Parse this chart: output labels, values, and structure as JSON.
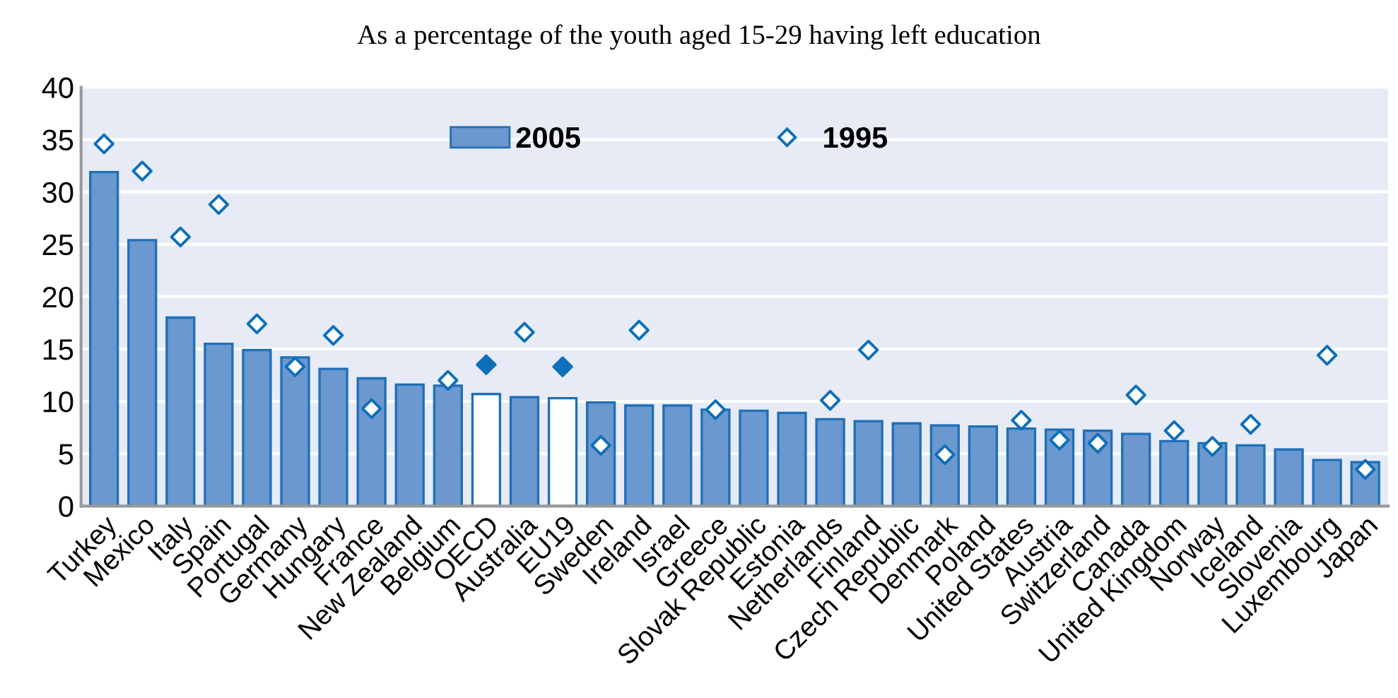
{
  "chart_data": {
    "type": "bar",
    "title": "As a percentage of the youth aged 15-29 having left education",
    "categories": [
      "Turkey",
      "Mexico",
      "Italy",
      "Spain",
      "Portugal",
      "Germany",
      "Hungary",
      "France",
      "New Zealand",
      "Belgium",
      "OECD",
      "Australia",
      "EU19",
      "Sweden",
      "Ireland",
      "Israel",
      "Greece",
      "Slovak Republic",
      "Estonia",
      "Netherlands",
      "Finland",
      "Czech Republic",
      "Denmark",
      "Poland",
      "United States",
      "Austria",
      "Switzerland",
      "Canada",
      "United Kingdom",
      "Norway",
      "Iceland",
      "Slovenia",
      "Luxembourg",
      "Japan"
    ],
    "series": [
      {
        "name": "2005",
        "color": "#1f6fb8",
        "colors": [
          "#6a98cf",
          "#6a98cf",
          "#6a98cf",
          "#6a98cf",
          "#6a98cf",
          "#6a98cf",
          "#6a98cf",
          "#6a98cf",
          "#6a98cf",
          "#6a98cf",
          "#ffffff",
          "#6a98cf",
          "#ffffff",
          "#6a98cf",
          "#6a98cf",
          "#6a98cf",
          "#6a98cf",
          "#6a98cf",
          "#6a98cf",
          "#6a98cf",
          "#6a98cf",
          "#6a98cf",
          "#6a98cf",
          "#6a98cf",
          "#6a98cf",
          "#6a98cf",
          "#6a98cf",
          "#6a98cf",
          "#6a98cf",
          "#6a98cf",
          "#6a98cf",
          "#6a98cf",
          "#6a98cf",
          "#6a98cf"
        ],
        "values": [
          31.9,
          25.4,
          18.0,
          15.5,
          14.9,
          14.2,
          13.1,
          12.2,
          11.6,
          11.5,
          10.7,
          10.4,
          10.3,
          9.9,
          9.6,
          9.6,
          9.2,
          9.1,
          8.9,
          8.3,
          8.1,
          7.9,
          7.7,
          7.6,
          7.4,
          7.3,
          7.2,
          6.9,
          6.2,
          6.0,
          5.8,
          5.4,
          4.4,
          4.2
        ]
      },
      {
        "name": "1995",
        "type": "scatter",
        "marker": "diamond",
        "color": "#0e6fba",
        "colors": [
          "#ffffff",
          "#ffffff",
          "#ffffff",
          "#ffffff",
          "#ffffff",
          "#ffffff",
          "#ffffff",
          "#ffffff",
          "#ffffff",
          "#ffffff",
          "#0e6fba",
          "#ffffff",
          "#0e6fba",
          "#ffffff",
          "#ffffff",
          "#ffffff",
          "#ffffff",
          "#ffffff",
          "#ffffff",
          "#ffffff",
          "#ffffff",
          "#ffffff",
          "#ffffff",
          "#ffffff",
          "#ffffff",
          "#ffffff",
          "#ffffff",
          "#ffffff",
          "#ffffff",
          "#ffffff",
          "#ffffff",
          "#ffffff",
          "#ffffff",
          "#ffffff"
        ],
        "values": [
          34.6,
          32.0,
          25.7,
          28.8,
          17.4,
          13.3,
          16.3,
          9.3,
          null,
          12.0,
          13.5,
          16.6,
          13.3,
          5.8,
          16.8,
          null,
          9.2,
          null,
          null,
          10.1,
          14.9,
          null,
          4.9,
          null,
          8.2,
          6.3,
          6.0,
          10.6,
          7.2,
          5.7,
          7.8,
          null,
          14.4,
          3.5
        ]
      }
    ],
    "ylim": [
      0,
      40
    ],
    "yticks": [
      0,
      5,
      10,
      15,
      20,
      25,
      30,
      35,
      40
    ],
    "grid": "y",
    "legend": "top"
  }
}
